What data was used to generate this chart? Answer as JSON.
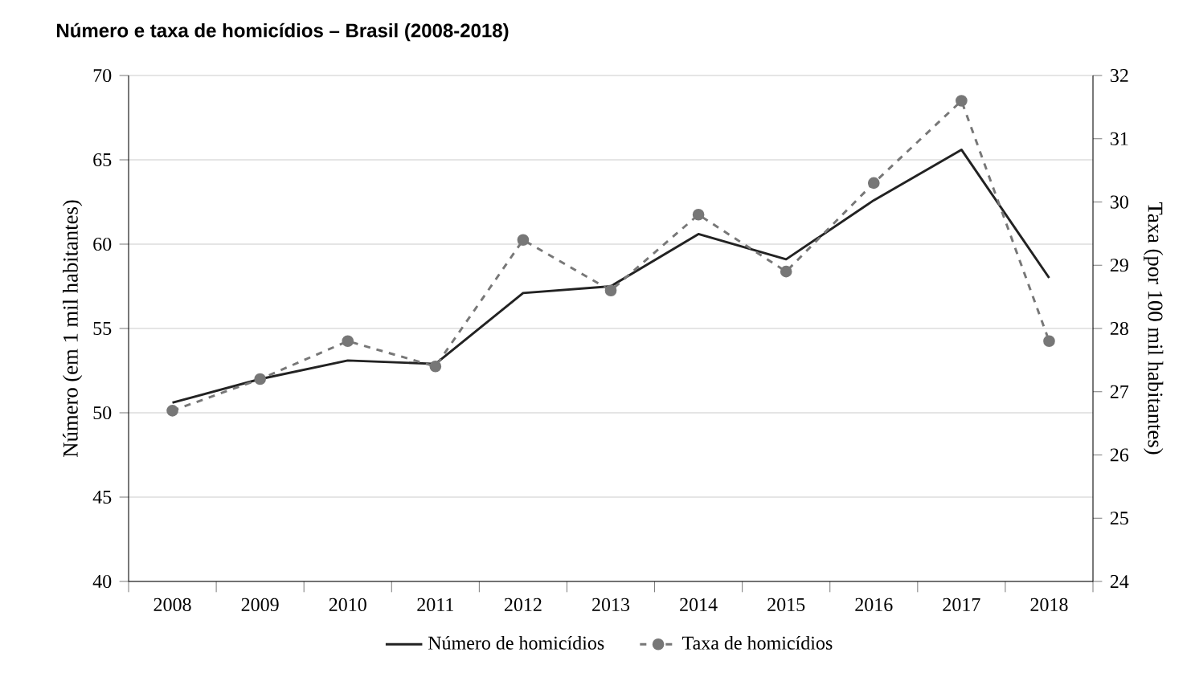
{
  "chart_data": {
    "type": "line",
    "title": "Número e taxa de homicídios – Brasil (2008-2018)",
    "ylabel": "Número (em 1 mil habitantes)",
    "y2label": "Taxa (por 100 mil habitantes)",
    "categories": [
      "2008",
      "2009",
      "2010",
      "2011",
      "2012",
      "2013",
      "2014",
      "2015",
      "2016",
      "2017",
      "2018"
    ],
    "series": [
      {
        "name": "Número de homicídios",
        "color": "#222222",
        "marker": "none",
        "line_style": "solid",
        "values": [
          50.6,
          52.0,
          53.1,
          52.9,
          57.1,
          57.5,
          60.6,
          59.1,
          62.6,
          65.6,
          58.0
        ]
      },
      {
        "name": "Taxa de homicídios",
        "color": "#777777",
        "marker": "circle",
        "line_style": "dashed",
        "axis": "y2",
        "values": [
          26.7,
          27.2,
          27.8,
          27.4,
          29.4,
          28.6,
          29.8,
          28.9,
          30.3,
          31.6,
          27.8
        ]
      }
    ],
    "ylim": [
      40,
      70
    ],
    "yticks": [
      40,
      45,
      50,
      55,
      60,
      65,
      70
    ],
    "y2lim": [
      24,
      32
    ],
    "y2ticks": [
      24,
      25,
      26,
      27,
      28,
      29,
      30,
      31,
      32
    ],
    "grid": "y",
    "legend": "bottom"
  }
}
